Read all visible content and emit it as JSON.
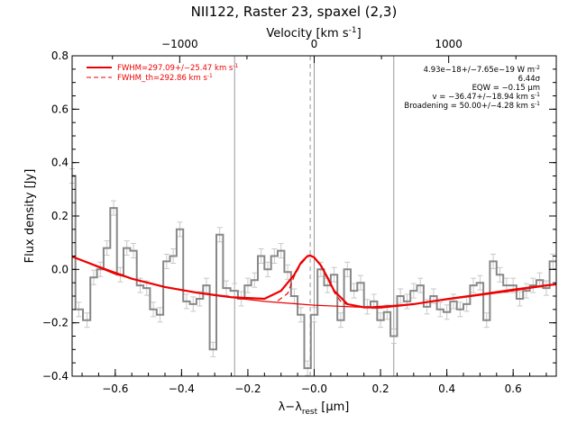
{
  "chart_data": {
    "type": "line",
    "title": "NII122, Raster 23, spaxel (2,3)",
    "xlabel": "λ−λ",
    "xlabel_sub": "rest",
    "xlabel_unit": " [μm]",
    "ylabel": "Flux density [Jy]",
    "top_axis_label": "Velocity [km s",
    "top_axis_label_sup": "-1",
    "top_axis_label_end": "]",
    "xlim": [
      -0.73,
      0.73
    ],
    "ylim": [
      -0.4,
      0.8
    ],
    "vlim": [
      -1800,
      1800
    ],
    "x_ticks": [
      -0.6,
      -0.4,
      -0.2,
      0.0,
      0.2,
      0.4,
      0.6
    ],
    "x_tick_labels": [
      "−0.6",
      "−0.4",
      "−0.2",
      "−0.0",
      "0.2",
      "0.4",
      "0.6"
    ],
    "y_ticks": [
      -0.4,
      -0.2,
      0.0,
      0.2,
      0.4,
      0.6,
      0.8
    ],
    "y_tick_labels": [
      "−0.4",
      "−0.2",
      "0.0",
      "0.2",
      "0.4",
      "0.6",
      "0.8"
    ],
    "v_ticks": [
      -1000,
      0,
      1000
    ],
    "v_tick_labels": [
      "−1000",
      "0",
      "1000"
    ],
    "vertical_lines": [
      -0.24,
      -0.012,
      0.0,
      0.24
    ],
    "legend": [
      {
        "label": "FWHM=297.09+/−25.47 km s",
        "sup": "-1",
        "style": "solid",
        "color": "#ee0000"
      },
      {
        "label": "FWHM_th=292.86 km s",
        "sup": "-1",
        "style": "dashed",
        "color": "#ee0000"
      }
    ],
    "annotations": [
      {
        "text": "4.93e−18+/−7.65e−19 W m",
        "sup": "-2"
      },
      {
        "text": "6.44σ",
        "sup": ""
      },
      {
        "text": "EQW = −0.15 μm",
        "sup": ""
      },
      {
        "text": "v = −36.47+/−18.94 km s",
        "sup": "-1"
      },
      {
        "text": "Broadening = 50.00+/−4.28 km s",
        "sup": "-1"
      }
    ],
    "series": [
      {
        "name": "data",
        "style": "steps",
        "color": "#888888",
        "x": [
          -0.73,
          -0.71,
          -0.685,
          -0.665,
          -0.645,
          -0.625,
          -0.605,
          -0.585,
          -0.565,
          -0.545,
          -0.525,
          -0.505,
          -0.485,
          -0.465,
          -0.445,
          -0.425,
          -0.405,
          -0.385,
          -0.365,
          -0.345,
          -0.325,
          -0.305,
          -0.285,
          -0.265,
          -0.24,
          -0.22,
          -0.2,
          -0.18,
          -0.16,
          -0.14,
          -0.12,
          -0.1,
          -0.08,
          -0.06,
          -0.04,
          -0.02,
          0.0,
          0.02,
          0.04,
          0.06,
          0.08,
          0.1,
          0.12,
          0.14,
          0.16,
          0.18,
          0.2,
          0.22,
          0.24,
          0.26,
          0.28,
          0.3,
          0.32,
          0.34,
          0.36,
          0.38,
          0.4,
          0.42,
          0.44,
          0.46,
          0.48,
          0.5,
          0.52,
          0.54,
          0.56,
          0.58,
          0.6,
          0.62,
          0.64,
          0.66,
          0.68,
          0.7,
          0.72
        ],
        "y": [
          0.35,
          -0.15,
          -0.19,
          -0.03,
          0.0,
          0.08,
          0.23,
          -0.02,
          0.08,
          0.07,
          -0.06,
          -0.07,
          -0.15,
          -0.17,
          0.03,
          0.05,
          0.15,
          -0.12,
          -0.13,
          -0.11,
          -0.06,
          -0.3,
          0.13,
          -0.07,
          -0.08,
          -0.11,
          -0.06,
          -0.04,
          0.05,
          0.0,
          0.05,
          0.07,
          -0.01,
          -0.1,
          -0.17,
          -0.37,
          -0.17,
          0.0,
          -0.06,
          -0.02,
          -0.19,
          0.0,
          -0.08,
          -0.05,
          -0.14,
          -0.12,
          -0.19,
          -0.16,
          -0.25,
          -0.1,
          -0.12,
          -0.08,
          -0.06,
          -0.14,
          -0.1,
          -0.15,
          -0.16,
          -0.12,
          -0.15,
          -0.13,
          -0.06,
          -0.05,
          -0.19,
          0.03,
          -0.02,
          -0.06,
          -0.06,
          -0.11,
          -0.08,
          -0.06,
          -0.04,
          -0.07,
          0.03
        ]
      },
      {
        "name": "fit",
        "style": "smooth",
        "color": "#ee0000",
        "x": [
          -0.73,
          -0.65,
          -0.55,
          -0.45,
          -0.35,
          -0.25,
          -0.15,
          -0.1,
          -0.06,
          -0.04,
          -0.02,
          -0.012,
          0.0,
          0.02,
          0.04,
          0.06,
          0.1,
          0.15,
          0.2,
          0.3,
          0.4,
          0.5,
          0.6,
          0.7,
          0.73
        ],
        "y": [
          0.048,
          0.01,
          -0.035,
          -0.066,
          -0.088,
          -0.104,
          -0.11,
          -0.08,
          -0.02,
          0.025,
          0.05,
          0.052,
          0.045,
          0.015,
          -0.03,
          -0.08,
          -0.13,
          -0.142,
          -0.143,
          -0.13,
          -0.111,
          -0.094,
          -0.076,
          -0.06,
          -0.056
        ]
      },
      {
        "name": "baseline",
        "style": "smooth",
        "color": "#ee0000",
        "x": [
          -0.73,
          -0.6,
          -0.45,
          -0.3,
          -0.15,
          0.0,
          0.15,
          0.3,
          0.45,
          0.6,
          0.73
        ],
        "y": [
          0.048,
          -0.018,
          -0.066,
          -0.098,
          -0.12,
          -0.134,
          -0.142,
          -0.13,
          -0.105,
          -0.08,
          -0.056
        ]
      },
      {
        "name": "thermal",
        "style": "dashed",
        "color": "#ee0000",
        "x": [
          -0.11,
          -0.08,
          -0.06,
          -0.04,
          -0.02,
          -0.012,
          0.0,
          0.02,
          0.04,
          0.06,
          0.08,
          0.1
        ],
        "y": [
          -0.118,
          -0.09,
          -0.025,
          0.02,
          0.048,
          0.05,
          0.043,
          0.012,
          -0.035,
          -0.085,
          -0.12,
          -0.132
        ]
      }
    ]
  }
}
